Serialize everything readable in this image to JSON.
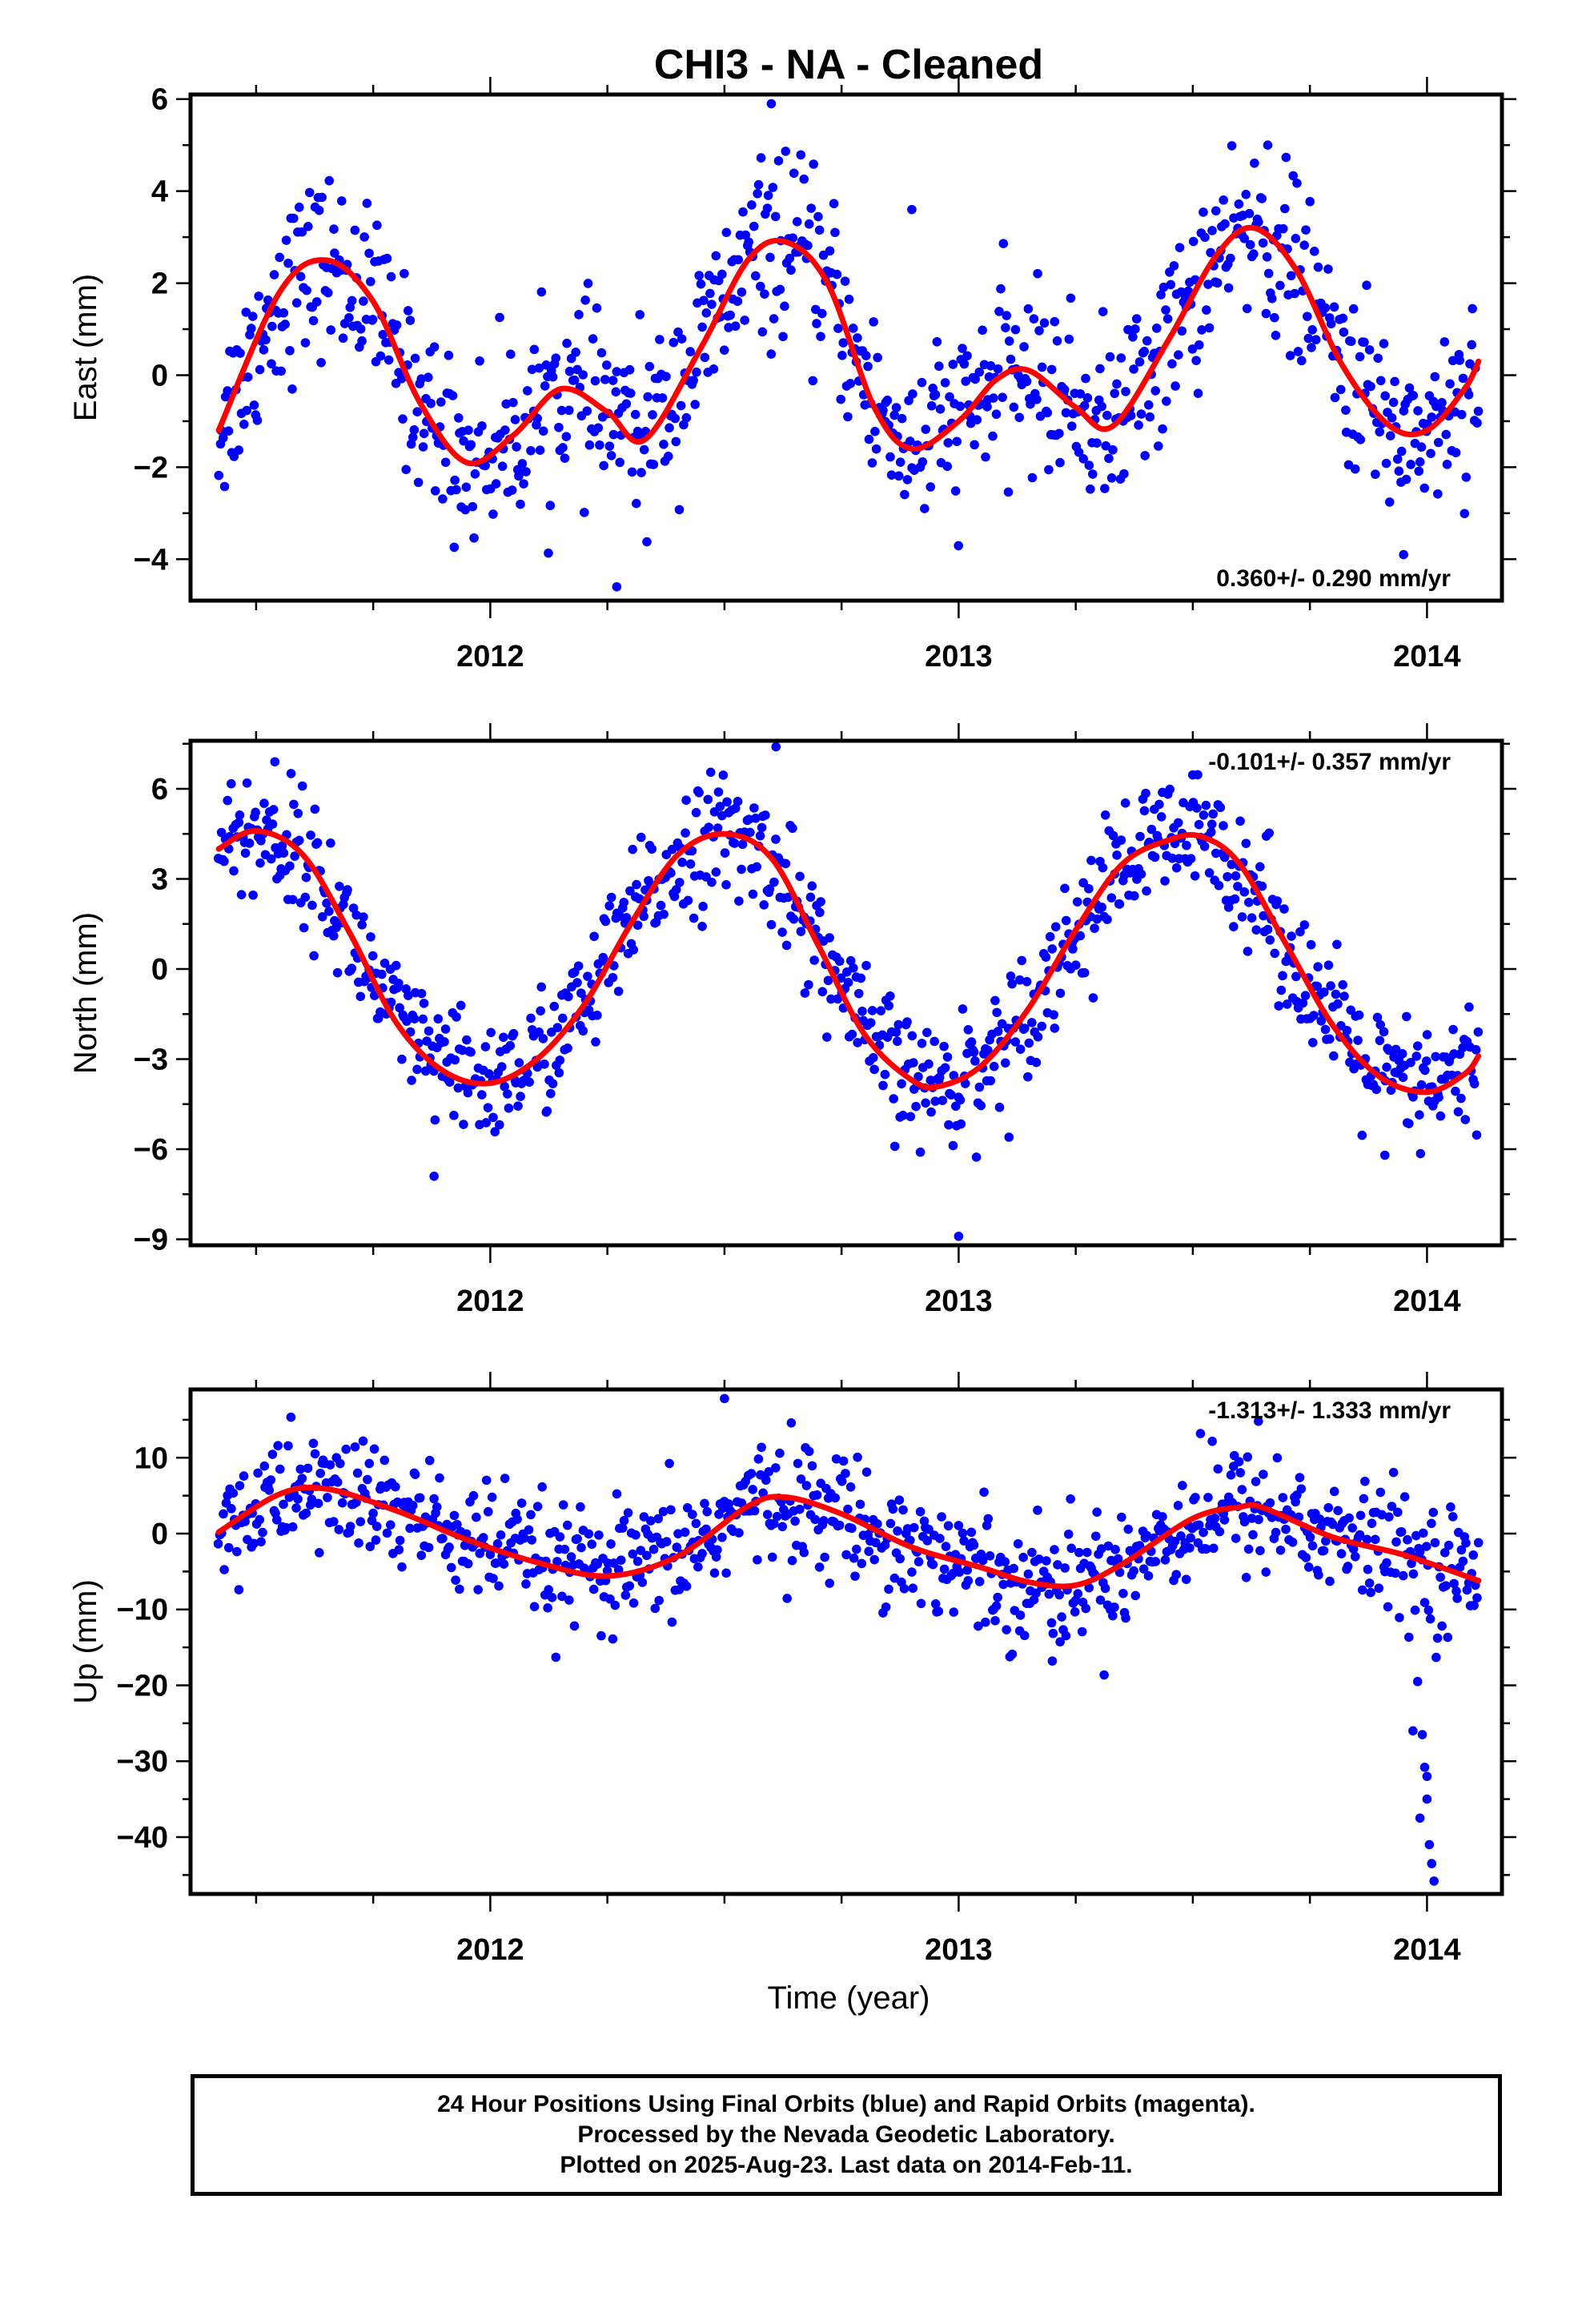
{
  "title": "CHI3  - NA - Cleaned",
  "xlabel": "Time (year)",
  "footer": {
    "line1": "24 Hour Positions Using Final Orbits (blue) and Rapid Orbits (magenta).",
    "line2": "Processed by the Nevada Geodetic Laboratory.",
    "line3": "Plotted on 2025-Aug-23. Last data on 2014-Feb-11."
  },
  "colors": {
    "points": "#0000ff",
    "fit": "#ff0000"
  },
  "chart_data": [
    {
      "type": "scatter",
      "ylabel": "East (mm)",
      "rate_text": "0.360+/- 0.290 mm/yr",
      "rate_position": "bottom-right",
      "xlim": [
        2011.36,
        2014.16
      ],
      "ylim": [
        -4.9,
        6.1
      ],
      "xticks": [
        2012,
        2013,
        2014
      ],
      "yticks": [
        -4,
        -2,
        0,
        2,
        4,
        6
      ],
      "fit": {
        "x": [
          2011.42,
          2011.55,
          2011.65,
          2011.75,
          2011.85,
          2011.95,
          2012.05,
          2012.15,
          2012.25,
          2012.33,
          2012.45,
          2012.55,
          2012.63,
          2012.72,
          2012.82,
          2012.9,
          2013.0,
          2013.08,
          2013.15,
          2013.25,
          2013.33,
          2013.45,
          2013.55,
          2013.63,
          2013.72,
          2013.82,
          2013.92,
          2014.0,
          2014.08,
          2014.11
        ],
        "y": [
          -1.2,
          1.8,
          2.5,
          1.6,
          -0.6,
          -1.9,
          -1.3,
          -0.3,
          -0.8,
          -1.4,
          0.6,
          2.5,
          2.9,
          2.0,
          -0.7,
          -1.6,
          -1.0,
          -0.1,
          0.1,
          -0.7,
          -1.1,
          0.8,
          2.6,
          3.2,
          2.3,
          0.2,
          -1.1,
          -1.2,
          -0.3,
          0.3
        ]
      },
      "points": {
        "n": 890,
        "noise": 0.95,
        "outliers": [
          [
            2012.6,
            5.9
          ],
          [
            2012.27,
            -4.6
          ],
          [
            2013.95,
            -3.9
          ],
          [
            2012.9,
            3.6
          ],
          [
            2013.66,
            5.0
          ]
        ]
      }
    },
    {
      "type": "scatter",
      "ylabel": "North (mm)",
      "rate_text": "-0.101+/- 0.357 mm/yr",
      "rate_position": "top-right",
      "xlim": [
        2011.36,
        2014.16
      ],
      "ylim": [
        -9.2,
        7.6
      ],
      "xticks": [
        2012,
        2013,
        2014
      ],
      "yticks": [
        -9,
        -6,
        -3,
        0,
        3,
        6
      ],
      "fit": {
        "x": [
          2011.42,
          2011.5,
          2011.6,
          2011.7,
          2011.8,
          2011.9,
          2012.0,
          2012.1,
          2012.2,
          2012.3,
          2012.4,
          2012.5,
          2012.6,
          2012.7,
          2012.8,
          2012.9,
          2012.96,
          2013.05,
          2013.15,
          2013.25,
          2013.35,
          2013.45,
          2013.52,
          2013.6,
          2013.7,
          2013.8,
          2013.9,
          2014.0,
          2014.08,
          2014.11
        ],
        "y": [
          4.0,
          4.6,
          3.8,
          1.2,
          -1.8,
          -3.4,
          -3.8,
          -3.0,
          -1.2,
          1.5,
          3.8,
          4.5,
          3.7,
          0.8,
          -2.2,
          -3.7,
          -3.9,
          -3.2,
          -1.3,
          1.3,
          3.5,
          4.3,
          4.4,
          3.5,
          0.8,
          -1.9,
          -3.6,
          -4.1,
          -3.5,
          -2.9
        ]
      },
      "points": {
        "n": 890,
        "noise": 1.05,
        "outliers": [
          [
            2012.61,
            7.4
          ],
          [
            2013.0,
            -8.9
          ],
          [
            2011.88,
            -6.9
          ],
          [
            2011.54,
            6.9
          ],
          [
            2013.91,
            -6.2
          ]
        ]
      }
    },
    {
      "type": "scatter",
      "ylabel": "Up (mm)",
      "rate_text": "-1.313+/- 1.333 mm/yr",
      "rate_position": "top-right",
      "xlim": [
        2011.36,
        2014.16
      ],
      "ylim": [
        -47.5,
        19
      ],
      "xticks": [
        2012,
        2013,
        2014
      ],
      "yticks": [
        -40,
        -30,
        -20,
        -10,
        0,
        10
      ],
      "fit": {
        "x": [
          2011.42,
          2011.55,
          2011.65,
          2011.8,
          2011.95,
          2012.1,
          2012.25,
          2012.4,
          2012.55,
          2012.63,
          2012.75,
          2012.9,
          2013.05,
          2013.15,
          2013.25,
          2013.35,
          2013.5,
          2013.6,
          2013.65,
          2013.8,
          2013.95,
          2014.11
        ],
        "y": [
          0.2,
          5.2,
          5.9,
          3.0,
          -0.8,
          -3.8,
          -5.6,
          -3.0,
          3.6,
          4.8,
          2.6,
          -1.8,
          -4.5,
          -6.4,
          -6.8,
          -4.0,
          2.0,
          3.5,
          3.4,
          -0.5,
          -2.8,
          -6.2
        ]
      },
      "points": {
        "n": 890,
        "noise": 4.0,
        "outliers": [
          [
            2012.5,
            17.8
          ],
          [
            2013.64,
            14.8
          ],
          [
            2013.2,
            -16.8
          ],
          [
            2013.98,
            -19.5
          ],
          [
            2013.99,
            -26.5
          ],
          [
            2013.995,
            -30.8
          ],
          [
            2014.0,
            -32.0
          ],
          [
            2013.985,
            -37.5
          ],
          [
            2014.005,
            -41.0
          ],
          [
            2014.01,
            -43.5
          ],
          [
            2014.015,
            -45.8
          ],
          [
            2014.0,
            -35.0
          ],
          [
            2013.97,
            -26.0
          ]
        ]
      }
    }
  ]
}
